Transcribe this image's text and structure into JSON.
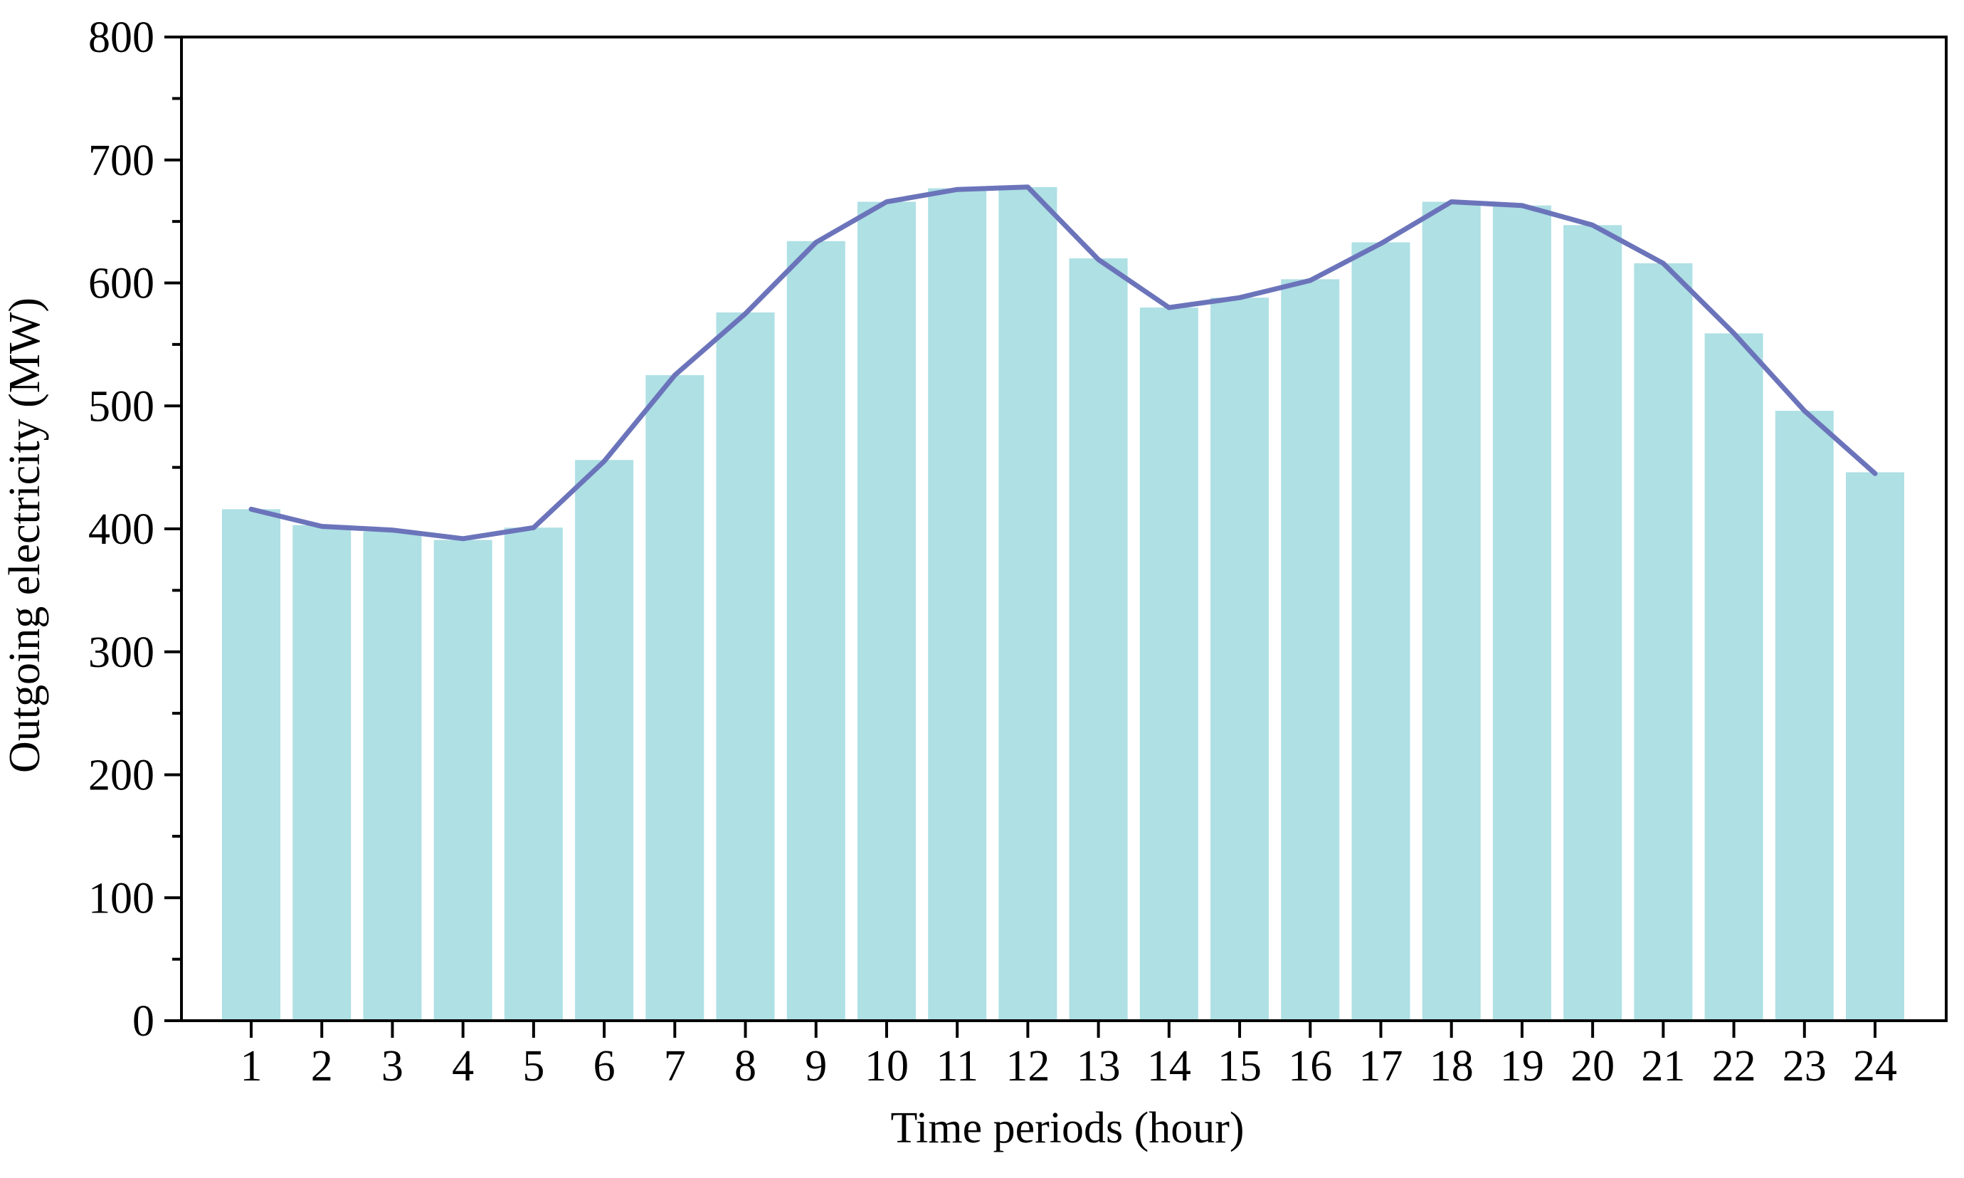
{
  "chart_data": {
    "type": "bar",
    "title": "",
    "xlabel": "Time periods (hour)",
    "ylabel": "Outgoing electricity (MW)",
    "categories": [
      "1",
      "2",
      "3",
      "4",
      "5",
      "6",
      "7",
      "8",
      "9",
      "10",
      "11",
      "12",
      "13",
      "14",
      "15",
      "16",
      "17",
      "18",
      "19",
      "20",
      "21",
      "22",
      "23",
      "24"
    ],
    "ylim": [
      0,
      800
    ],
    "yticks": [
      "0",
      "100",
      "200",
      "300",
      "400",
      "500",
      "600",
      "700",
      "800"
    ],
    "grid": false,
    "legend": "none",
    "series": [
      {
        "type": "bar",
        "color": "#aee0e4",
        "values": [
          416,
          403,
          398,
          391,
          401,
          456,
          525,
          576,
          634,
          666,
          677,
          678,
          620,
          580,
          588,
          603,
          633,
          666,
          663,
          647,
          616,
          559,
          496,
          446
        ]
      },
      {
        "type": "line",
        "color": "#6b74ba",
        "values": [
          416,
          402,
          399,
          392,
          401,
          455,
          525,
          575,
          633,
          666,
          676,
          678,
          619,
          580,
          588,
          602,
          632,
          666,
          663,
          647,
          616,
          559,
          496,
          445
        ]
      }
    ]
  }
}
